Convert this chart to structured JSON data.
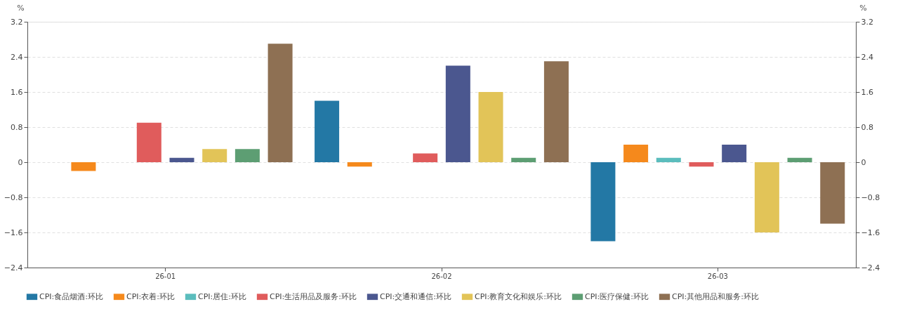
{
  "chart_data": {
    "type": "bar",
    "categories": [
      "26-01",
      "26-02",
      "26-03"
    ],
    "series": [
      {
        "name": "CPI:食品烟酒:环比",
        "color": "#2378a5",
        "values": [
          0,
          1.4,
          -1.8
        ]
      },
      {
        "name": "CPI:衣着:环比",
        "color": "#f5891c",
        "values": [
          -0.2,
          -0.1,
          0.4
        ]
      },
      {
        "name": "CPI:居住:环比",
        "color": "#5bbdbd",
        "values": [
          0,
          0,
          0.1
        ]
      },
      {
        "name": "CPI:生活用品及服务:环比",
        "color": "#e05c5c",
        "values": [
          0.9,
          0.2,
          -0.1
        ]
      },
      {
        "name": "CPI:交通和通信:环比",
        "color": "#4b578f",
        "values": [
          0.1,
          2.2,
          0.4
        ]
      },
      {
        "name": "CPI:教育文化和娱乐:环比",
        "color": "#e2c458",
        "values": [
          0.3,
          1.6,
          -1.6
        ]
      },
      {
        "name": "CPI:医疗保健:环比",
        "color": "#5d9e73",
        "values": [
          0.3,
          0.1,
          0.1
        ]
      },
      {
        "name": "CPI:其他用品和服务:环比",
        "color": "#8e7053",
        "values": [
          2.7,
          2.3,
          -1.4
        ]
      }
    ],
    "ylabel": "%",
    "y2label": "%",
    "ylim": [
      -2.4,
      3.2
    ],
    "yticks": [
      -2.4,
      -1.6,
      -0.8,
      0,
      0.8,
      1.6,
      2.4,
      3.2
    ],
    "y2lim": [
      -2.4,
      3.2
    ],
    "y2ticks": [
      -2.4,
      -1.6,
      -0.8,
      0,
      0.8,
      1.6,
      2.4,
      3.2
    ],
    "grid": "y",
    "legend": "bottom"
  }
}
